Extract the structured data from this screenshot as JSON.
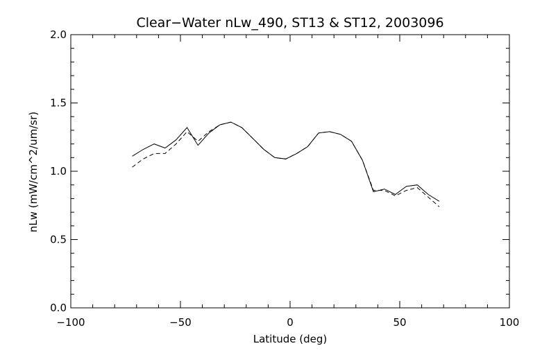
{
  "chart_data": {
    "type": "line",
    "title": "Clear−Water nLw_490, ST13 & ST12, 2003096",
    "xlabel": "Latitude (deg)",
    "ylabel": "nLw (mW/cm^2/um/sr)",
    "xlim": [
      -100,
      100
    ],
    "ylim": [
      0.0,
      2.0
    ],
    "x_ticks": [
      -100,
      -50,
      0,
      50,
      100
    ],
    "x_tick_labels": [
      "−100",
      "−50",
      "0",
      "50",
      "100"
    ],
    "y_ticks": [
      0.0,
      0.5,
      1.0,
      1.5,
      2.0
    ],
    "y_tick_labels": [
      "0.0",
      "0.5",
      "1.0",
      "1.5",
      "2.0"
    ],
    "grid": false,
    "series": [
      {
        "style": "solid",
        "x": [
          -72,
          -67,
          -62,
          -57,
          -52,
          -47,
          -42,
          -37,
          -32,
          -27,
          -22,
          -17,
          -12,
          -7,
          -2,
          3,
          8,
          13,
          18,
          23,
          28,
          33,
          38,
          43,
          48,
          53,
          58,
          63,
          68
        ],
        "y": [
          1.11,
          1.16,
          1.2,
          1.17,
          1.23,
          1.32,
          1.19,
          1.28,
          1.34,
          1.36,
          1.32,
          1.24,
          1.16,
          1.1,
          1.09,
          1.13,
          1.18,
          1.28,
          1.29,
          1.27,
          1.22,
          1.08,
          0.85,
          0.87,
          0.83,
          0.89,
          0.9,
          0.83,
          0.78
        ]
      },
      {
        "style": "dashed",
        "x": [
          -72,
          -67,
          -62,
          -57,
          -52,
          -47,
          -42,
          -37,
          -32,
          -27,
          -22,
          -17,
          -12,
          -7,
          -2,
          3,
          8,
          13,
          18,
          23,
          28,
          33,
          38,
          43,
          48,
          53,
          58,
          63,
          68
        ],
        "y": [
          1.03,
          1.09,
          1.13,
          1.13,
          1.2,
          1.29,
          1.22,
          1.29,
          1.34,
          1.36,
          1.32,
          1.24,
          1.16,
          1.1,
          1.09,
          1.13,
          1.18,
          1.28,
          1.29,
          1.27,
          1.22,
          1.08,
          0.86,
          0.86,
          0.82,
          0.86,
          0.88,
          0.81,
          0.74
        ]
      }
    ]
  }
}
